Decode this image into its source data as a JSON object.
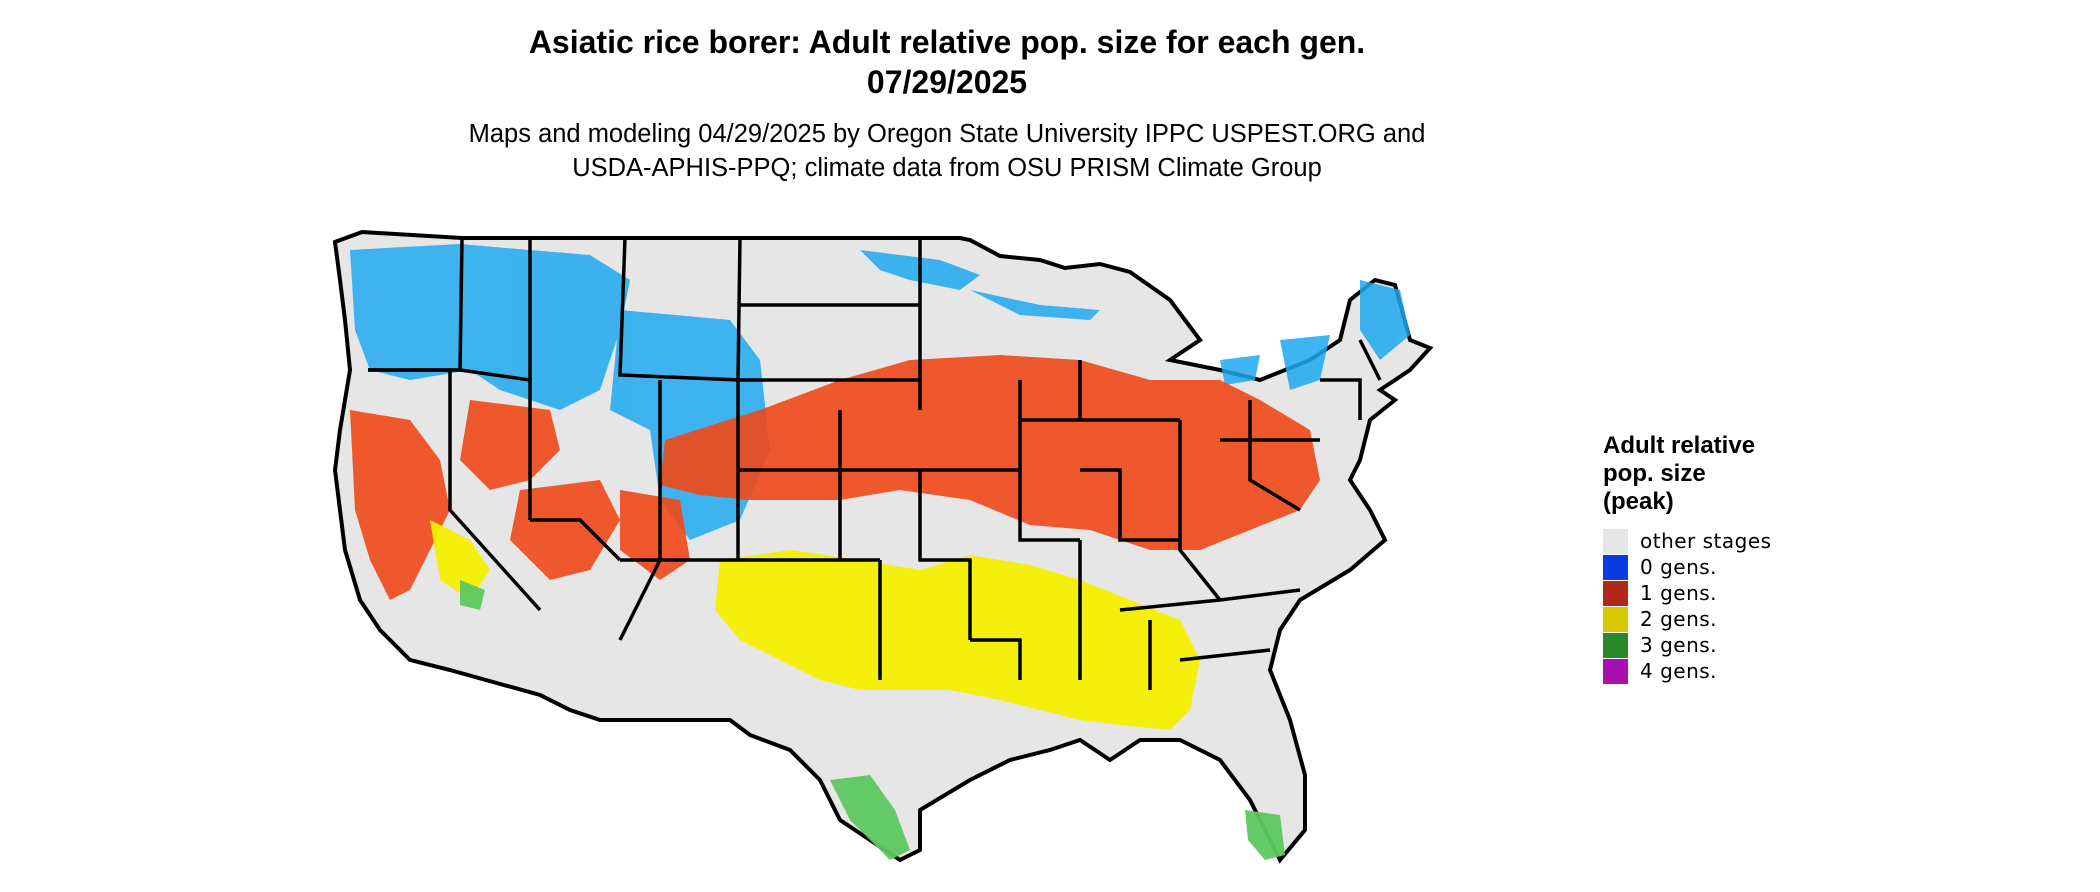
{
  "title_line1": "Asiatic rice borer: Adult relative pop. size for each gen.",
  "title_line2": "07/29/2025",
  "subtitle_line1": "Maps and modeling 04/29/2025 by Oregon State University IPPC USPEST.ORG and",
  "subtitle_line2": "USDA-APHIS-PPQ; climate data from OSU PRISM Climate Group",
  "legend": {
    "title_lines": [
      "Adult relative",
      "pop. size",
      "(peak)"
    ],
    "items": [
      {
        "label": "other stages",
        "color": "#e6e6e6"
      },
      {
        "label": "0 gens.",
        "color": "#0a3be0"
      },
      {
        "label": "1 gens.",
        "color": "#b02818"
      },
      {
        "label": "2 gens.",
        "color": "#d8c800"
      },
      {
        "label": "3 gens.",
        "color": "#2a8a2a"
      },
      {
        "label": "4 gens.",
        "color": "#a810b0"
      }
    ]
  },
  "map_colors": {
    "background_land": "#e6e6e6",
    "zero_gens_shade": "#1ea8f0",
    "one_gen_shade": "#f04818",
    "two_gens_shade": "#f4f000",
    "three_gens_shade": "#5cc860",
    "borders": "#000000"
  }
}
